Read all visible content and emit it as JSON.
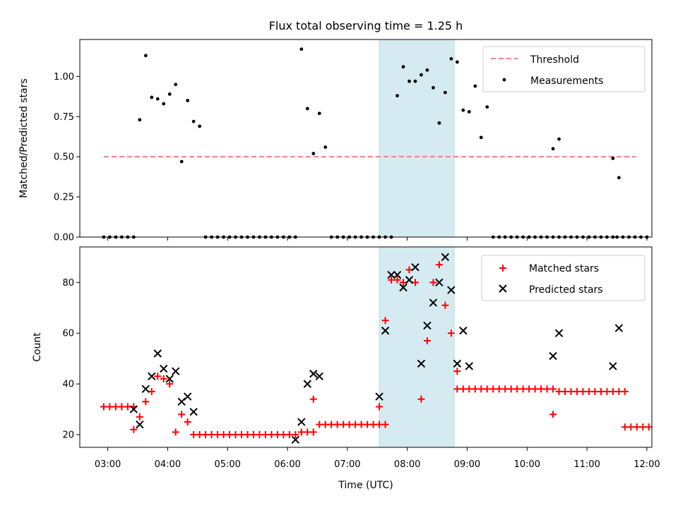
{
  "chart_data": [
    {
      "type": "scatter",
      "title": "Flux total observing time = 1.25 h",
      "xlabel": "",
      "ylabel": "Matched/Predicted stars",
      "xlim": [
        "02:32",
        "12:05"
      ],
      "ylim": [
        0.0,
        1.23
      ],
      "yticks": [
        "0.00",
        "0.25",
        "0.50",
        "0.75",
        "1.00"
      ],
      "grid": false,
      "legend_position": "top-right",
      "shaded_interval": {
        "start": "07:32",
        "end": "08:47",
        "color": "#d5ebf1"
      },
      "threshold": {
        "name": "Threshold",
        "y": 0.5,
        "x_start": "02:56",
        "x_end": "11:49",
        "color": "#f08080",
        "style": "dashed"
      },
      "series": [
        {
          "name": "Measurements",
          "color": "#000000",
          "marker": "dot",
          "points": [
            [
              "02:56",
              0
            ],
            [
              "03:02",
              0
            ],
            [
              "03:08",
              0
            ],
            [
              "03:14",
              0
            ],
            [
              "03:20",
              0
            ],
            [
              "03:26",
              0
            ],
            [
              "03:32",
              0.73
            ],
            [
              "03:38",
              1.13
            ],
            [
              "03:44",
              0.87
            ],
            [
              "03:50",
              0.86
            ],
            [
              "03:56",
              0.83
            ],
            [
              "04:02",
              0.89
            ],
            [
              "04:08",
              0.95
            ],
            [
              "04:14",
              0.47
            ],
            [
              "04:20",
              0.85
            ],
            [
              "04:26",
              0.72
            ],
            [
              "04:32",
              0.69
            ],
            [
              "04:38",
              0
            ],
            [
              "04:44",
              0
            ],
            [
              "04:50",
              0
            ],
            [
              "04:56",
              0
            ],
            [
              "05:02",
              0
            ],
            [
              "05:08",
              0
            ],
            [
              "05:14",
              0
            ],
            [
              "05:20",
              0
            ],
            [
              "05:26",
              0
            ],
            [
              "05:32",
              0
            ],
            [
              "05:38",
              0
            ],
            [
              "05:44",
              0
            ],
            [
              "05:50",
              0
            ],
            [
              "05:56",
              0
            ],
            [
              "06:02",
              0
            ],
            [
              "06:08",
              0
            ],
            [
              "06:14",
              1.17
            ],
            [
              "06:20",
              0.8
            ],
            [
              "06:26",
              0.52
            ],
            [
              "06:32",
              0.77
            ],
            [
              "06:38",
              0.56
            ],
            [
              "06:44",
              0
            ],
            [
              "06:50",
              0
            ],
            [
              "06:56",
              0
            ],
            [
              "07:02",
              0
            ],
            [
              "07:08",
              0
            ],
            [
              "07:14",
              0
            ],
            [
              "07:20",
              0
            ],
            [
              "07:26",
              0
            ],
            [
              "07:32",
              0
            ],
            [
              "07:38",
              0
            ],
            [
              "07:44",
              0
            ],
            [
              "07:50",
              0.88
            ],
            [
              "07:56",
              1.06
            ],
            [
              "08:02",
              0.97
            ],
            [
              "08:08",
              0.97
            ],
            [
              "08:14",
              1.01
            ],
            [
              "08:20",
              1.04
            ],
            [
              "08:26",
              0.93
            ],
            [
              "08:32",
              0.71
            ],
            [
              "08:38",
              0.9
            ],
            [
              "08:44",
              1.11
            ],
            [
              "08:50",
              1.09
            ],
            [
              "08:56",
              0.79
            ],
            [
              "09:02",
              0.78
            ],
            [
              "09:08",
              0.94
            ],
            [
              "09:14",
              0.62
            ],
            [
              "09:20",
              0.81
            ],
            [
              "09:26",
              0
            ],
            [
              "09:32",
              0
            ],
            [
              "09:38",
              0
            ],
            [
              "09:44",
              0
            ],
            [
              "09:50",
              0
            ],
            [
              "09:56",
              0
            ],
            [
              "10:02",
              0
            ],
            [
              "10:08",
              0
            ],
            [
              "10:14",
              0
            ],
            [
              "10:20",
              0
            ],
            [
              "10:26",
              0
            ],
            [
              "10:32",
              0
            ],
            [
              "10:38",
              0
            ],
            [
              "10:44",
              0
            ],
            [
              "10:50",
              0
            ],
            [
              "10:56",
              0
            ],
            [
              "11:02",
              0
            ],
            [
              "11:08",
              0
            ],
            [
              "11:14",
              0
            ],
            [
              "11:20",
              0
            ],
            [
              "11:26",
              0
            ],
            [
              "10:26",
              0.55
            ],
            [
              "10:32",
              0.61
            ],
            [
              "11:30",
              0
            ],
            [
              "11:36",
              0
            ],
            [
              "11:42",
              0
            ],
            [
              "11:48",
              0
            ],
            [
              "11:54",
              0
            ],
            [
              "12:00",
              0
            ],
            [
              "11:26",
              0.49
            ],
            [
              "11:32",
              0.37
            ]
          ]
        }
      ]
    },
    {
      "type": "scatter",
      "title": "",
      "xlabel": "Time (UTC)",
      "ylabel": "Count",
      "xlim": [
        "02:32",
        "12:05"
      ],
      "ylim": [
        15,
        94
      ],
      "xticks": [
        "03:00",
        "04:00",
        "05:00",
        "06:00",
        "07:00",
        "08:00",
        "09:00",
        "10:00",
        "11:00",
        "12:00"
      ],
      "yticks": [
        "20",
        "40",
        "60",
        "80"
      ],
      "grid": false,
      "legend_position": "top-right",
      "shaded_interval": {
        "start": "07:32",
        "end": "08:47",
        "color": "#d5ebf1"
      },
      "series": [
        {
          "name": "Matched stars",
          "color": "#ff0000",
          "marker": "plus",
          "points": [
            [
              "02:56",
              31
            ],
            [
              "03:02",
              31
            ],
            [
              "03:08",
              31
            ],
            [
              "03:14",
              31
            ],
            [
              "03:20",
              31
            ],
            [
              "03:26",
              31
            ],
            [
              "03:26",
              22
            ],
            [
              "03:32",
              27
            ],
            [
              "03:38",
              33
            ],
            [
              "03:44",
              37
            ],
            [
              "03:50",
              43
            ],
            [
              "03:56",
              42
            ],
            [
              "04:02",
              40
            ],
            [
              "04:08",
              21
            ],
            [
              "04:14",
              28
            ],
            [
              "04:20",
              25
            ],
            [
              "04:26",
              20
            ],
            [
              "04:32",
              20
            ],
            [
              "04:38",
              20
            ],
            [
              "04:44",
              20
            ],
            [
              "04:50",
              20
            ],
            [
              "04:56",
              20
            ],
            [
              "05:02",
              20
            ],
            [
              "05:08",
              20
            ],
            [
              "05:14",
              20
            ],
            [
              "05:20",
              20
            ],
            [
              "05:26",
              20
            ],
            [
              "05:32",
              20
            ],
            [
              "05:38",
              20
            ],
            [
              "05:44",
              20
            ],
            [
              "05:50",
              20
            ],
            [
              "05:56",
              20
            ],
            [
              "06:02",
              20
            ],
            [
              "06:08",
              20
            ],
            [
              "06:14",
              21
            ],
            [
              "06:20",
              21
            ],
            [
              "06:26",
              21
            ],
            [
              "06:26",
              34
            ],
            [
              "06:32",
              24
            ],
            [
              "06:38",
              24
            ],
            [
              "06:44",
              24
            ],
            [
              "06:50",
              24
            ],
            [
              "06:56",
              24
            ],
            [
              "07:02",
              24
            ],
            [
              "07:08",
              24
            ],
            [
              "07:14",
              24
            ],
            [
              "07:20",
              24
            ],
            [
              "07:26",
              24
            ],
            [
              "07:32",
              24
            ],
            [
              "07:38",
              24
            ],
            [
              "07:32",
              31
            ],
            [
              "07:38",
              65
            ],
            [
              "07:44",
              81
            ],
            [
              "07:50",
              81
            ],
            [
              "07:56",
              80
            ],
            [
              "08:02",
              85
            ],
            [
              "08:08",
              80
            ],
            [
              "08:14",
              34
            ],
            [
              "08:20",
              57
            ],
            [
              "08:26",
              80
            ],
            [
              "08:32",
              87
            ],
            [
              "08:38",
              71
            ],
            [
              "08:44",
              60
            ],
            [
              "08:50",
              45
            ],
            [
              "08:50",
              38
            ],
            [
              "08:56",
              38
            ],
            [
              "09:02",
              38
            ],
            [
              "09:08",
              38
            ],
            [
              "09:14",
              38
            ],
            [
              "09:20",
              38
            ],
            [
              "09:26",
              38
            ],
            [
              "09:32",
              38
            ],
            [
              "09:38",
              38
            ],
            [
              "09:44",
              38
            ],
            [
              "09:50",
              38
            ],
            [
              "09:56",
              38
            ],
            [
              "10:02",
              38
            ],
            [
              "10:08",
              38
            ],
            [
              "10:14",
              38
            ],
            [
              "10:20",
              38
            ],
            [
              "10:26",
              38
            ],
            [
              "10:26",
              28
            ],
            [
              "10:32",
              37
            ],
            [
              "10:38",
              37
            ],
            [
              "10:44",
              37
            ],
            [
              "10:50",
              37
            ],
            [
              "10:56",
              37
            ],
            [
              "11:02",
              37
            ],
            [
              "11:08",
              37
            ],
            [
              "11:14",
              37
            ],
            [
              "11:20",
              37
            ],
            [
              "11:26",
              37
            ],
            [
              "11:32",
              37
            ],
            [
              "11:38",
              37
            ],
            [
              "11:38",
              23
            ],
            [
              "11:44",
              23
            ],
            [
              "11:50",
              23
            ],
            [
              "11:56",
              23
            ],
            [
              "12:02",
              23
            ]
          ]
        },
        {
          "name": "Predicted stars",
          "color": "#000000",
          "marker": "x",
          "points": [
            [
              "03:26",
              30
            ],
            [
              "03:32",
              24
            ],
            [
              "03:38",
              38
            ],
            [
              "03:44",
              43
            ],
            [
              "03:50",
              52
            ],
            [
              "03:56",
              46
            ],
            [
              "04:02",
              42
            ],
            [
              "04:08",
              45
            ],
            [
              "04:14",
              33
            ],
            [
              "04:20",
              35
            ],
            [
              "04:26",
              29
            ],
            [
              "06:08",
              18
            ],
            [
              "06:14",
              25
            ],
            [
              "06:20",
              40
            ],
            [
              "06:26",
              44
            ],
            [
              "06:32",
              43
            ],
            [
              "07:32",
              35
            ],
            [
              "07:38",
              61
            ],
            [
              "07:44",
              83
            ],
            [
              "07:50",
              83
            ],
            [
              "07:56",
              78
            ],
            [
              "08:02",
              81
            ],
            [
              "08:08",
              86
            ],
            [
              "08:14",
              48
            ],
            [
              "08:20",
              63
            ],
            [
              "08:26",
              72
            ],
            [
              "08:32",
              80
            ],
            [
              "08:38",
              90
            ],
            [
              "08:44",
              77
            ],
            [
              "08:50",
              48
            ],
            [
              "08:56",
              61
            ],
            [
              "09:02",
              47
            ],
            [
              "10:26",
              51
            ],
            [
              "10:32",
              60
            ],
            [
              "11:26",
              47
            ],
            [
              "11:32",
              62
            ]
          ]
        }
      ]
    }
  ]
}
